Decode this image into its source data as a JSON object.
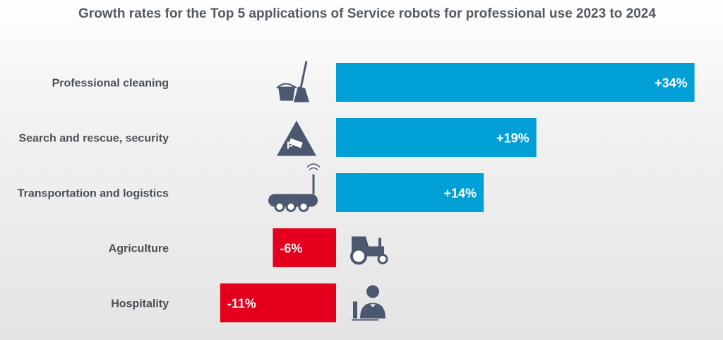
{
  "chart_data": {
    "type": "bar",
    "orientation": "horizontal",
    "title": "Growth rates for the Top 5 applications of Service robots for professional use 2023 to 2024",
    "categories": [
      "Professional cleaning",
      "Search and rescue, security",
      "Transportation and logistics",
      "Agriculture",
      "Hospitality"
    ],
    "values": [
      34,
      19,
      14,
      -6,
      -11
    ],
    "data_labels": [
      "+34%",
      "+19%",
      "+14%",
      "-6%",
      "-11%"
    ],
    "icons": [
      "bucket-mop-icon",
      "surveillance-camera-warning-icon",
      "robot-vehicle-icon",
      "tractor-icon",
      "waiter-icon"
    ],
    "unit": "%",
    "xlim": [
      -11,
      34
    ],
    "grid": false,
    "colors": {
      "positive": "#00a0d6",
      "negative": "#e4001c",
      "icon": "#4b5870"
    }
  }
}
